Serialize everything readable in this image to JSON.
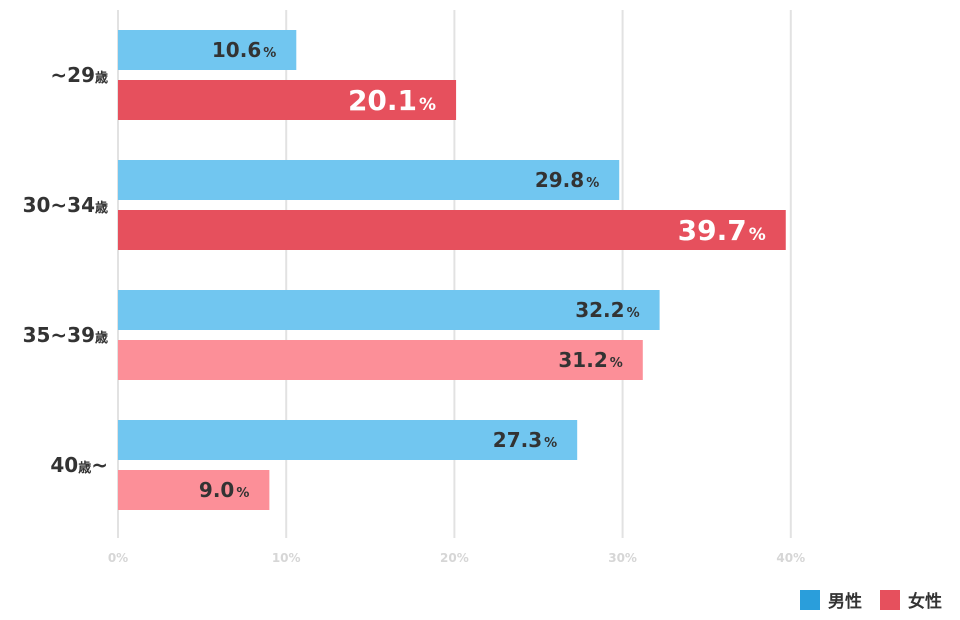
{
  "colors": {
    "male": "#71c6f0",
    "female": "#e6505d",
    "female_light": "#fc8f98",
    "legend_male": "#2a9edb",
    "legend_female": "#e6505d",
    "grid": "#e2e2e2",
    "label_dark": "#333333",
    "label_light": "#ffffff"
  },
  "legend": {
    "male": "男性",
    "female": "女性"
  },
  "chart_data": {
    "type": "bar",
    "orientation": "horizontal",
    "categories": [
      {
        "label": "~29",
        "unit": "歳",
        "unit_position": "after"
      },
      {
        "label": "30~34",
        "unit": "歳",
        "unit_position": "after"
      },
      {
        "label": "35~39",
        "unit": "歳",
        "unit_position": "after"
      },
      {
        "label": "40",
        "unit": "歳",
        "unit_position": "middle",
        "suffix": "~"
      }
    ],
    "series": [
      {
        "name": "男性",
        "values": [
          10.6,
          29.8,
          32.2,
          27.3
        ],
        "value_labels": [
          "10.6",
          "29.8",
          "32.2",
          "27.3"
        ]
      },
      {
        "name": "女性",
        "values": [
          20.1,
          39.7,
          31.2,
          9.0
        ],
        "value_labels": [
          "20.1",
          "39.7",
          "31.2",
          "9.0"
        ]
      }
    ],
    "value_unit": "%",
    "xlim": [
      0,
      40
    ],
    "ticks": [
      "0%",
      "10%",
      "20%",
      "30%",
      "40%"
    ],
    "tick_values": [
      0,
      10,
      20,
      30,
      40
    ],
    "grid": true,
    "legend_position": "bottom-right"
  }
}
